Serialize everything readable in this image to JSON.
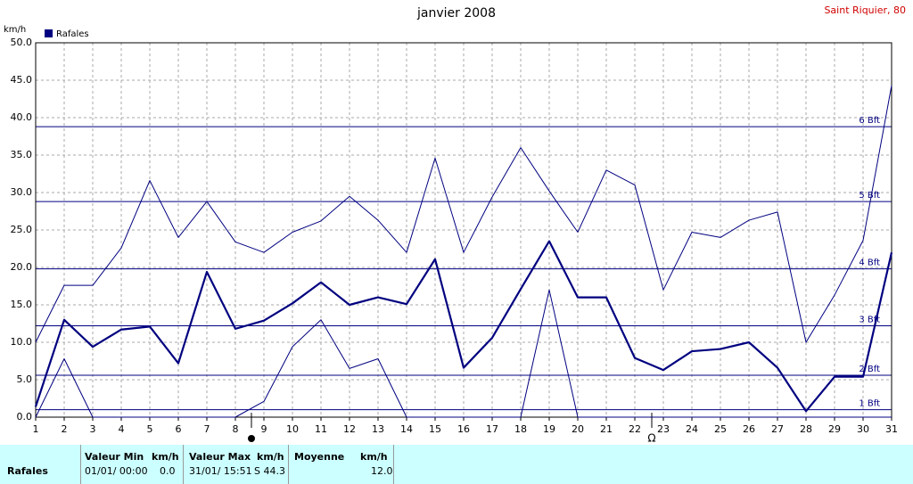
{
  "chart_data": {
    "type": "line",
    "title": "janvier 2008",
    "station": "Saint Riquier, 80",
    "y_label": "km/h",
    "legend": "Rafales",
    "color": "#000080",
    "categories": [
      "1",
      "2",
      "3",
      "4",
      "5",
      "6",
      "7",
      "8",
      "9",
      "10",
      "11",
      "12",
      "13",
      "14",
      "15",
      "16",
      "17",
      "18",
      "19",
      "20",
      "21",
      "22",
      "23",
      "24",
      "25",
      "26",
      "27",
      "28",
      "29",
      "30",
      "31"
    ],
    "series": [
      {
        "values": [
          10,
          17.6,
          17.6,
          22.6,
          31.6,
          24,
          28.8,
          23.4,
          22,
          24.7,
          26.2,
          29.5,
          26.3,
          22,
          34.6,
          22,
          29.4,
          36,
          30.2,
          24.7,
          33,
          31,
          17,
          24.7,
          24,
          26.3,
          27.4,
          10,
          16.3,
          23.6,
          44.3
        ],
        "width": 1
      },
      {
        "values": [
          1.4,
          13,
          9.4,
          11.7,
          12.1,
          7.2,
          19.4,
          11.8,
          12.9,
          15.2,
          18,
          15,
          16,
          15.1,
          21.1,
          6.6,
          10.6,
          17.1,
          23.5,
          16,
          16,
          7.9,
          6.3,
          8.8,
          9.1,
          10,
          6.6,
          0.8,
          5.4,
          5.4,
          22
        ],
        "width": 2.2
      },
      {
        "values": [
          0,
          7.8,
          0,
          0,
          0,
          0,
          0,
          0,
          2.1,
          9.4,
          13,
          6.5,
          7.8,
          0,
          0,
          0,
          0,
          0,
          17,
          0,
          0,
          0,
          0,
          0,
          0,
          0,
          0,
          0,
          0,
          0,
          0
        ],
        "width": 1
      }
    ],
    "ylim": [
      0,
      50
    ],
    "yticks": [
      {
        "value": 0,
        "label": "0.0"
      },
      {
        "value": 5,
        "label": "5.0"
      },
      {
        "value": 10,
        "label": "10.0"
      },
      {
        "value": 15,
        "label": "15.0"
      },
      {
        "value": 20,
        "label": "20.0"
      },
      {
        "value": 25,
        "label": "25.0"
      },
      {
        "value": 30,
        "label": "30.0"
      },
      {
        "value": 35,
        "label": "35.0"
      },
      {
        "value": 40,
        "label": "40.0"
      },
      {
        "value": 45,
        "label": "45.0"
      },
      {
        "value": 50,
        "label": "50.0"
      }
    ],
    "reference_lines": [
      {
        "value": 1.0,
        "label": "1 Bft"
      },
      {
        "value": 5.6,
        "label": "2 Bft"
      },
      {
        "value": 12.2,
        "label": "3 Bft"
      },
      {
        "value": 19.8,
        "label": "4 Bft"
      },
      {
        "value": 28.8,
        "label": "5 Bft"
      },
      {
        "value": 38.8,
        "label": "6 Bft"
      }
    ],
    "grid": true
  },
  "table": {
    "header": [
      "Valeur Min",
      "km/h",
      "Valeur Max",
      "km/h",
      "Moyenne",
      "km/h"
    ],
    "row": {
      "label": "Rafales",
      "min_date": "01/01/ 00:00",
      "min": "0.0",
      "max_date": "31/01/ 15:51",
      "max": "S 44.3",
      "mean": "12.0"
    }
  }
}
